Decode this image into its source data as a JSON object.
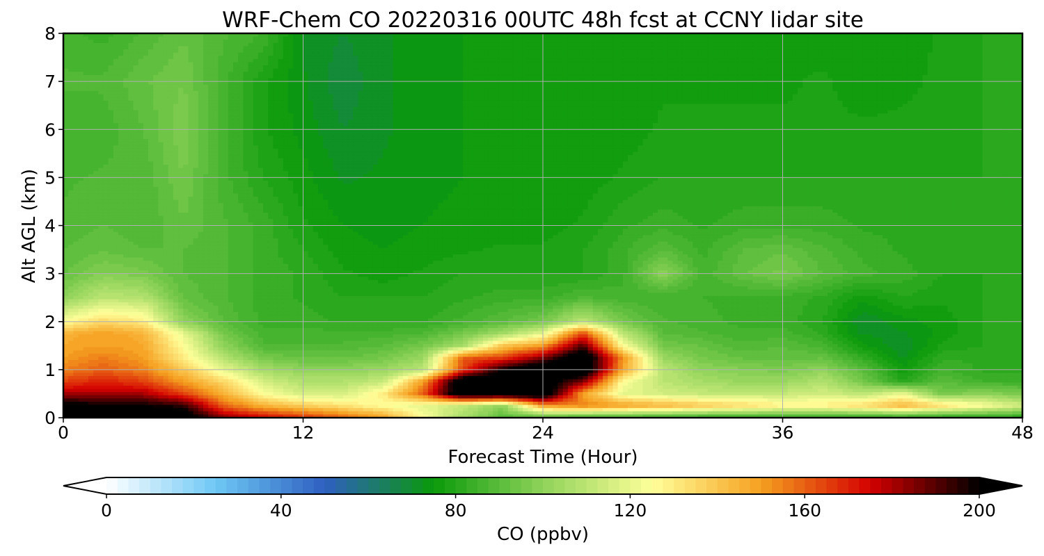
{
  "chart_data": {
    "type": "heatmap",
    "title": "WRF-Chem CO  20220316 00UTC 48h fcst at CCNY lidar site",
    "xlabel": "Forecast Time (Hour)",
    "ylabel": "Alt AGL (km)",
    "xlim": [
      0,
      48
    ],
    "ylim": [
      0,
      8
    ],
    "x_ticks": [
      "0",
      "12",
      "24",
      "36",
      "48"
    ],
    "y_ticks": [
      "0",
      "1",
      "2",
      "3",
      "4",
      "5",
      "6",
      "7",
      "8"
    ],
    "grid": true,
    "colorbar": {
      "label": "CO  (ppbv)",
      "range": [
        0,
        200
      ],
      "ticks": [
        "0",
        "40",
        "80",
        "120",
        "160",
        "200"
      ],
      "extend": "both",
      "colors": [
        "#ffffff",
        "#6ec8f5",
        "#2e5fc0",
        "#0a9a0a",
        "#8fd35a",
        "#ffff99",
        "#f5a020",
        "#d40000",
        "#000000"
      ]
    },
    "time_hours": [
      0,
      2,
      4,
      6,
      8,
      10,
      12,
      14,
      16,
      18,
      20,
      22,
      24,
      26,
      28,
      30,
      32,
      34,
      36,
      38,
      40,
      42,
      44,
      46,
      48
    ],
    "altitude_km": [
      0,
      0.25,
      0.5,
      0.75,
      1,
      1.25,
      1.5,
      1.75,
      2,
      2.5,
      3,
      3.5,
      4,
      5,
      6,
      7,
      8
    ],
    "values_ppbv": [
      [
        215,
        215,
        215,
        210,
        185,
        175,
        168,
        160,
        150,
        125,
        105,
        90,
        88,
        85,
        84,
        84,
        82,
        82,
        82,
        82,
        82,
        82,
        80,
        80,
        80
      ],
      [
        205,
        200,
        200,
        195,
        160,
        145,
        138,
        132,
        125,
        120,
        112,
        100,
        150,
        155,
        150,
        145,
        140,
        135,
        130,
        130,
        135,
        145,
        135,
        125,
        115
      ],
      [
        180,
        180,
        180,
        165,
        145,
        125,
        115,
        115,
        130,
        160,
        215,
        215,
        215,
        150,
        120,
        115,
        112,
        112,
        112,
        115,
        110,
        120,
        95,
        100,
        95
      ],
      [
        165,
        170,
        165,
        150,
        135,
        115,
        108,
        108,
        112,
        150,
        215,
        215,
        210,
        185,
        125,
        110,
        105,
        102,
        102,
        108,
        95,
        80,
        90,
        85,
        85
      ],
      [
        155,
        160,
        155,
        140,
        120,
        105,
        100,
        100,
        102,
        110,
        165,
        200,
        215,
        215,
        148,
        110,
        100,
        98,
        96,
        100,
        90,
        76,
        85,
        82,
        82
      ],
      [
        150,
        155,
        150,
        130,
        108,
        95,
        92,
        92,
        95,
        102,
        160,
        165,
        185,
        215,
        152,
        102,
        95,
        92,
        92,
        92,
        82,
        72,
        82,
        82,
        80
      ],
      [
        148,
        150,
        148,
        125,
        100,
        88,
        88,
        88,
        90,
        95,
        105,
        140,
        150,
        190,
        125,
        95,
        92,
        88,
        90,
        86,
        76,
        70,
        78,
        80,
        80
      ],
      [
        145,
        150,
        145,
        120,
        95,
        86,
        86,
        86,
        86,
        88,
        95,
        105,
        120,
        165,
        110,
        90,
        88,
        86,
        86,
        82,
        72,
        72,
        76,
        80,
        80
      ],
      [
        125,
        135,
        130,
        100,
        90,
        84,
        84,
        82,
        82,
        82,
        86,
        90,
        95,
        110,
        95,
        88,
        86,
        84,
        84,
        80,
        70,
        74,
        76,
        80,
        80
      ],
      [
        100,
        110,
        108,
        92,
        88,
        84,
        82,
        80,
        80,
        80,
        82,
        84,
        84,
        88,
        86,
        85,
        85,
        84,
        84,
        82,
        76,
        80,
        78,
        80,
        80
      ],
      [
        92,
        98,
        96,
        90,
        88,
        84,
        82,
        78,
        76,
        78,
        80,
        80,
        80,
        80,
        84,
        100,
        86,
        92,
        96,
        90,
        86,
        84,
        80,
        80,
        80
      ],
      [
        90,
        92,
        90,
        90,
        88,
        84,
        80,
        76,
        75,
        76,
        77,
        78,
        78,
        80,
        84,
        90,
        84,
        90,
        92,
        88,
        84,
        82,
        80,
        80,
        80
      ],
      [
        88,
        90,
        88,
        92,
        88,
        84,
        78,
        75,
        74,
        75,
        76,
        76,
        76,
        78,
        82,
        84,
        82,
        84,
        84,
        84,
        82,
        82,
        80,
        80,
        82
      ],
      [
        87,
        88,
        88,
        95,
        86,
        80,
        76,
        72,
        73,
        74,
        75,
        75,
        75,
        76,
        78,
        80,
        80,
        80,
        80,
        80,
        80,
        80,
        80,
        80,
        82
      ],
      [
        85,
        86,
        90,
        97,
        86,
        78,
        74,
        70,
        72,
        74,
        75,
        75,
        75,
        76,
        76,
        78,
        78,
        78,
        78,
        78,
        78,
        78,
        78,
        80,
        82
      ],
      [
        88,
        88,
        92,
        95,
        86,
        78,
        73,
        68,
        72,
        74,
        75,
        75,
        75,
        75,
        76,
        77,
        77,
        77,
        77,
        78,
        76,
        77,
        78,
        80,
        80
      ],
      [
        86,
        84,
        88,
        92,
        88,
        85,
        72,
        70,
        72,
        74,
        75,
        75,
        75,
        75,
        76,
        76,
        76,
        77,
        76,
        76,
        76,
        76,
        78,
        80,
        80
      ]
    ]
  }
}
